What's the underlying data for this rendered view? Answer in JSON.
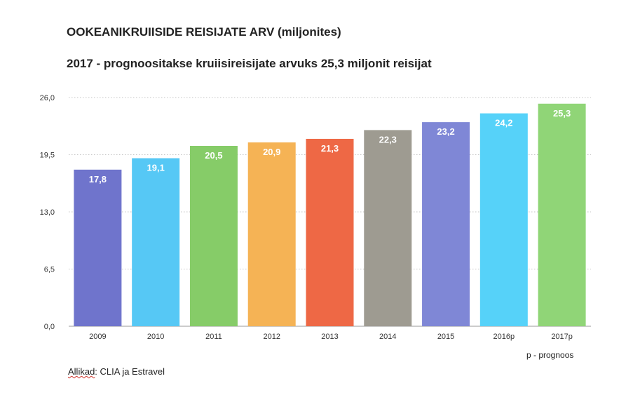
{
  "chart_data": {
    "type": "bar",
    "title": "OOKEANIKRUIISIDE REISIJATE ARV (miljonites)",
    "subtitle": "2017 - prognoositakse kruiisireisijate arvuks 25,3 miljonit reisijat",
    "categories": [
      "2009",
      "2010",
      "2011",
      "2012",
      "2013",
      "2014",
      "2015",
      "2016p",
      "2017p"
    ],
    "values": [
      17.8,
      19.1,
      20.5,
      20.9,
      21.3,
      22.3,
      23.2,
      24.2,
      25.3
    ],
    "value_labels": [
      "17,8",
      "19,1",
      "20,5",
      "20,9",
      "21,3",
      "22,3",
      "23,2",
      "24,2",
      "25,3"
    ],
    "bar_colors": [
      "#6f74cc",
      "#56c8f5",
      "#86cc68",
      "#f5b355",
      "#ee6845",
      "#9e9b91",
      "#7f87d6",
      "#56d2f9",
      "#90d577"
    ],
    "ylim": [
      0,
      26
    ],
    "yticks": [
      0,
      6.5,
      13,
      19.5,
      26
    ],
    "ytick_labels": [
      "0,0",
      "6,5",
      "13,0",
      "19,5",
      "26,0"
    ],
    "grid": true,
    "grid_style": "dotted",
    "legend": false
  },
  "footnote": "p - prognoos",
  "source": {
    "prefix": "Allikad",
    "rest": ": CLIA ja Estravel"
  }
}
